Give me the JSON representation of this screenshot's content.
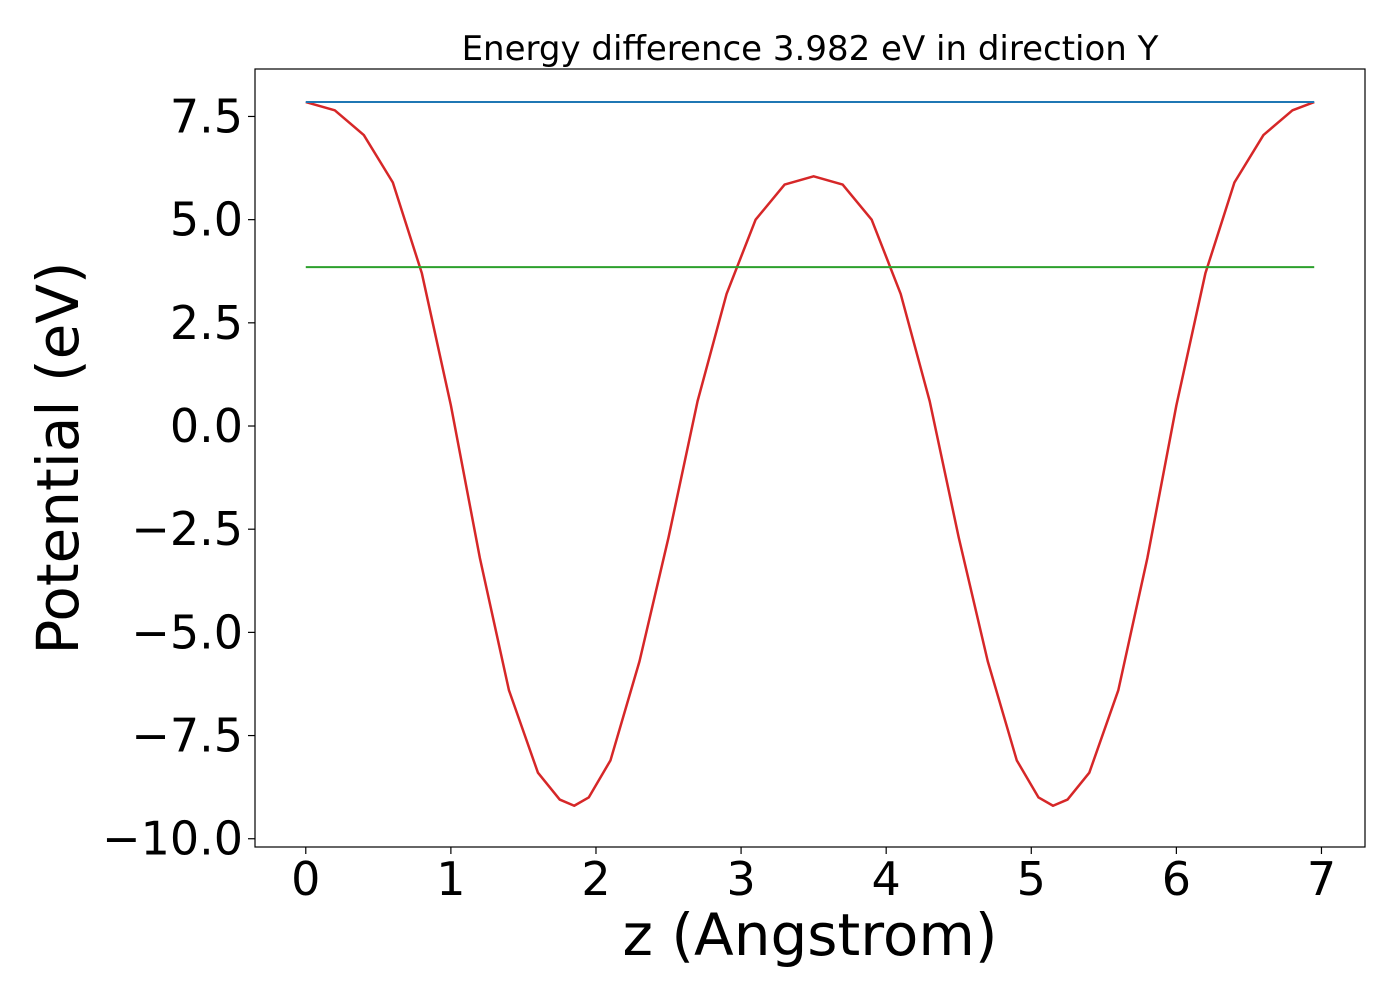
{
  "chart_data": {
    "type": "line",
    "title": "Energy difference 3.982 eV in direction Y",
    "xlabel": "z (Angstrom)",
    "ylabel": "Potential (eV)",
    "xlim": [
      -0.35,
      7.3
    ],
    "ylim": [
      -10.2,
      8.65
    ],
    "xticks": [
      0,
      1,
      2,
      3,
      4,
      5,
      6,
      7
    ],
    "xtick_labels": [
      "0",
      "1",
      "2",
      "3",
      "4",
      "5",
      "6",
      "7"
    ],
    "yticks": [
      7.5,
      5.0,
      2.5,
      0.0,
      -2.5,
      -5.0,
      -7.5,
      -10.0
    ],
    "ytick_labels": [
      "7.5",
      "5.0",
      "2.5",
      "0.0",
      "−2.5",
      "−5.0",
      "−7.5",
      "−10.0"
    ],
    "grid": false,
    "series": [
      {
        "color": "#d62728",
        "x": [
          0,
          0.2,
          0.4,
          0.6,
          0.8,
          1.0,
          1.2,
          1.4,
          1.6,
          1.75,
          1.85,
          1.95,
          2.1,
          2.3,
          2.5,
          2.7,
          2.9,
          3.1,
          3.3,
          3.5,
          3.7,
          3.9,
          4.1,
          4.3,
          4.5,
          4.7,
          4.9,
          5.05,
          5.15,
          5.25,
          5.4,
          5.6,
          5.8,
          6.0,
          6.2,
          6.4,
          6.6,
          6.8,
          6.95
        ],
        "y": [
          7.85,
          7.65,
          7.05,
          5.9,
          3.7,
          0.5,
          -3.2,
          -6.4,
          -8.4,
          -9.05,
          -9.2,
          -9.0,
          -8.1,
          -5.7,
          -2.7,
          0.6,
          3.2,
          5.0,
          5.85,
          6.05,
          5.85,
          5.0,
          3.2,
          0.6,
          -2.7,
          -5.7,
          -8.1,
          -9.0,
          -9.2,
          -9.05,
          -8.4,
          -6.4,
          -3.2,
          0.5,
          3.7,
          5.9,
          7.05,
          7.65,
          7.85
        ]
      },
      {
        "color": "#1f77b4",
        "x": [
          0,
          6.95
        ],
        "y": [
          7.85,
          7.85
        ]
      },
      {
        "color": "#2ca02c",
        "x": [
          0,
          6.95
        ],
        "y": [
          3.85,
          3.85
        ]
      }
    ]
  }
}
